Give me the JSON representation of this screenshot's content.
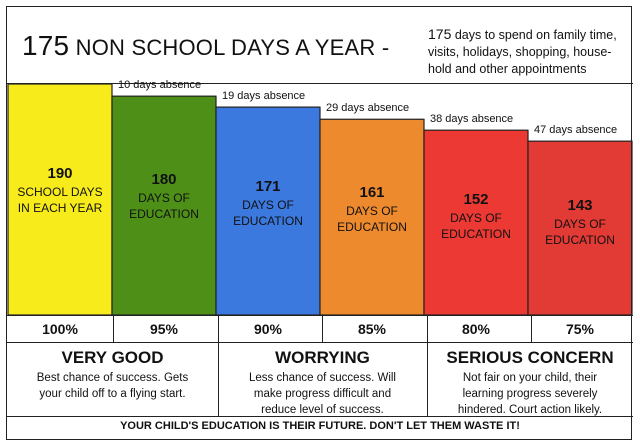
{
  "header": {
    "title_number": "175",
    "title_text": "NON SCHOOL DAYS A YEAR -",
    "note_line1_number": "175",
    "note_line1_text": "days to spend on family time,",
    "note_line2": "visits, holidays, shopping, house-",
    "note_line3": "hold and other appointments"
  },
  "chart_data": {
    "type": "bar",
    "categories": [
      "100%",
      "95%",
      "90%",
      "85%",
      "80%",
      "75%"
    ],
    "values": [
      190,
      180,
      171,
      161,
      152,
      143
    ],
    "ylim": [
      0,
      190
    ],
    "colors": [
      "#f7eb1c",
      "#4e8f17",
      "#3b79de",
      "#ee8a2e",
      "#ec3933",
      "#e23a34"
    ],
    "bars": [
      {
        "number": "190",
        "line1": "SCHOOL DAYS",
        "line2": "IN EACH YEAR",
        "absence": ""
      },
      {
        "number": "180",
        "line1": "DAYS OF",
        "line2": "EDUCATION",
        "absence": "10 days absence"
      },
      {
        "number": "171",
        "line1": "DAYS OF",
        "line2": "EDUCATION",
        "absence": "19 days absence"
      },
      {
        "number": "161",
        "line1": "DAYS OF",
        "line2": "EDUCATION",
        "absence": "29 days absence"
      },
      {
        "number": "152",
        "line1": "DAYS OF",
        "line2": "EDUCATION",
        "absence": "38 days absence"
      },
      {
        "number": "143",
        "line1": "DAYS OF",
        "line2": "EDUCATION",
        "absence": "47 days absence"
      }
    ]
  },
  "bands": [
    {
      "title": "VERY GOOD",
      "line1": "Best chance of success.  Gets",
      "line2": "your child off to a flying start.",
      "line3": ""
    },
    {
      "title": "WORRYING",
      "line1": "Less chance of success.  Will",
      "line2": "make progress difficult and",
      "line3": "reduce level of success."
    },
    {
      "title": "SERIOUS CONCERN",
      "line1": "Not fair on your child, their",
      "line2": "learning progress severely",
      "line3": "hindered.  Court action likely."
    }
  ],
  "footer": "YOUR CHILD'S EDUCATION IS THEIR FUTURE.  DON'T LET THEM WASTE IT!"
}
